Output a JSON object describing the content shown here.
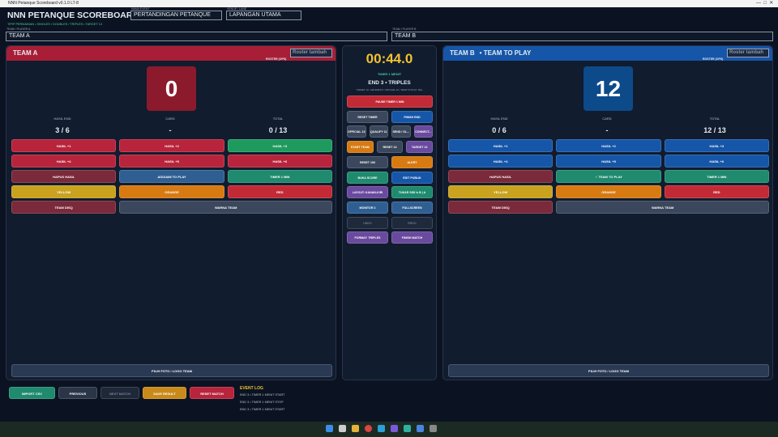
{
  "window": {
    "title": "NNN Petanque Scoreboard v0.1.0 LT-8"
  },
  "header": {
    "title": "NNN PETANQUE SCOREBOARD",
    "subtitle": "TIPIP PERMAINAN • SINGLES / DOUBLES / TRIPLES • TARGET 13",
    "event": {
      "label": "NAMA EVENT",
      "value": "PERTANDINGAN PETANQUE"
    },
    "venue": {
      "label": "VENUE / LANE",
      "value": "LAPANGAN UTAMA"
    }
  },
  "team_inputs": [
    {
      "label": "TEAM / PLAYER A",
      "value": "TEAM A"
    },
    {
      "label": "TEAM / PLAYER B",
      "value": "TEAM B"
    }
  ],
  "teams": [
    {
      "name": "TEAM A",
      "roster_label": "ROSTER (OPS)",
      "roster_placeholder": "Roster tambah",
      "score": 0,
      "stats": [
        {
          "label": "HASIL END",
          "value": "3 / 6"
        },
        {
          "label": "CARD",
          "value": "-"
        },
        {
          "label": "TOTAL",
          "value": "0 / 13"
        }
      ],
      "buttons": [
        "HASIL +1",
        "HASIL +2",
        "HASIL +3",
        "HASIL +4",
        "HASIL +5",
        "HASIL +6",
        "HAPUS HASIL",
        "ADD/AIM TO PLAY",
        "TIMER 1 MIN",
        "YELLOW",
        "ORANGE",
        "RED",
        "TEAM DISQ",
        "WARNA TEAM"
      ],
      "photo_button": "PILIH FOTO / LOGO TEAM"
    },
    {
      "name": "TEAM B",
      "status": "• TEAM TO PLAY",
      "roster_label": "ROSTER (OPS)",
      "roster_placeholder": "Roster tambah",
      "score": 12,
      "stats": [
        {
          "label": "HASIL END",
          "value": "0 / 6"
        },
        {
          "label": "CARD",
          "value": "-"
        },
        {
          "label": "TOTAL",
          "value": "12 / 13"
        }
      ],
      "buttons": [
        "HASIL +1",
        "HASIL +2",
        "HASIL +3",
        "HASIL +4",
        "HASIL +5",
        "HASIL +6",
        "HAPUS HASIL",
        "✓ TEAM TO PLAY",
        "TIMER 1 MIN",
        "YELLOW",
        "ORANGE",
        "RED",
        "TEAM DISQ",
        "WARNA TEAM"
      ],
      "photo_button": "PILIH FOTO / LOGO TEAM"
    }
  ],
  "center": {
    "timer": "00:44.0",
    "timer_label": "TIMER 1 MENIT",
    "end_info": "END 3 • TRIPLES",
    "details": "TARGET 13 • AIM ENDS 8 • OFFICIAL 13 • TEAM TO PLAY: TEA...",
    "button_rows": [
      [
        "PAUSE TIMER 1 MIN"
      ],
      [
        "RESET TIMER",
        "FINISH END"
      ],
      [
        "OFFICIAL 13",
        "QUALIFY 11",
        "SEND / SL...",
        "CONNECT..."
      ],
      [
        "START TEAM",
        "RESET 13",
        "TARGET 13"
      ],
      [
        "RESET 100",
        "ALERT"
      ],
      [
        "BUKA SCORE",
        "EDIT PUBLIK"
      ],
      [
        "LAYOUT: KANAN-KIRI",
        "TUKAR SISI ⇆ B | A"
      ],
      [
        "MONITOR 2",
        "FULLSCREEN"
      ],
      [
        "UNDO",
        "REDO"
      ],
      [
        "FORMAT: TRIPLES",
        "FINISH MATCH"
      ]
    ]
  },
  "footer": {
    "buttons": [
      "IMPORT CSV",
      "PREVIOUS",
      "NEXT MATCH",
      "SAVE RESULT",
      "RESET MATCH"
    ],
    "log": {
      "title": "EVENT LOG",
      "entries": [
        "END 3 • TIMER 1 MENIT START",
        "END 3 • TIMER 1 MENIT STOP",
        "END 3 • TIMER 1 MENIT START"
      ]
    }
  }
}
